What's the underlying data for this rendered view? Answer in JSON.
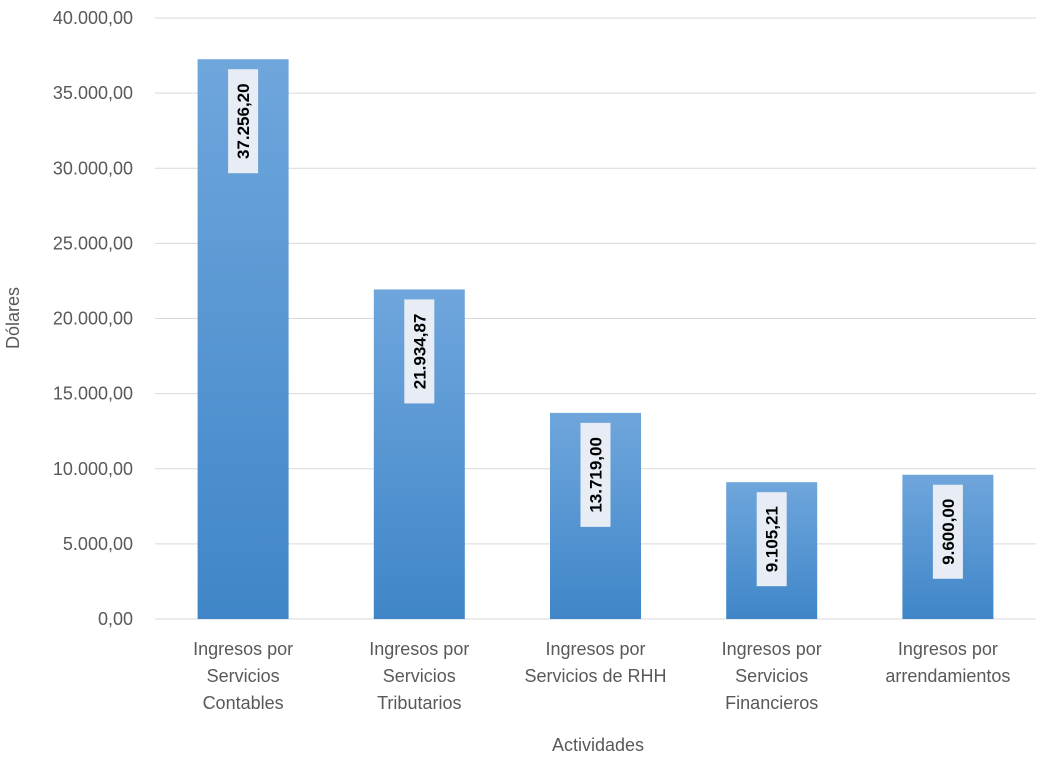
{
  "chart_data": {
    "type": "bar",
    "title": "",
    "xlabel": "Actividades",
    "ylabel": "Dólares",
    "ylim": [
      0,
      40000
    ],
    "yticks": [
      0,
      5000,
      10000,
      15000,
      20000,
      25000,
      30000,
      35000,
      40000
    ],
    "ytick_labels": [
      "0,00",
      "5.000,00",
      "10.000,00",
      "15.000,00",
      "20.000,00",
      "25.000,00",
      "30.000,00",
      "35.000,00",
      "40.000,00"
    ],
    "categories": [
      [
        "Ingresos por",
        "Servicios",
        "Contables"
      ],
      [
        "Ingresos por",
        "Servicios",
        "Tributarios"
      ],
      [
        "Ingresos por",
        "Servicios de RHH"
      ],
      [
        "Ingresos por",
        "Servicios",
        "Financieros"
      ],
      [
        "Ingresos por",
        "arrendamientos"
      ]
    ],
    "values": [
      37256.2,
      21934.87,
      13719.0,
      9105.21,
      9600.0
    ],
    "data_labels": [
      "37.256,20",
      "21.934,87",
      "13.719,00",
      "9.105,21",
      "9.600,00"
    ],
    "grid": true,
    "legend": "none",
    "colors": {
      "bar_top": "#6fa6dc",
      "bar_bottom": "#3f86c8",
      "grid": "#d9d9d9",
      "label_bg": "#e8edf5"
    }
  }
}
